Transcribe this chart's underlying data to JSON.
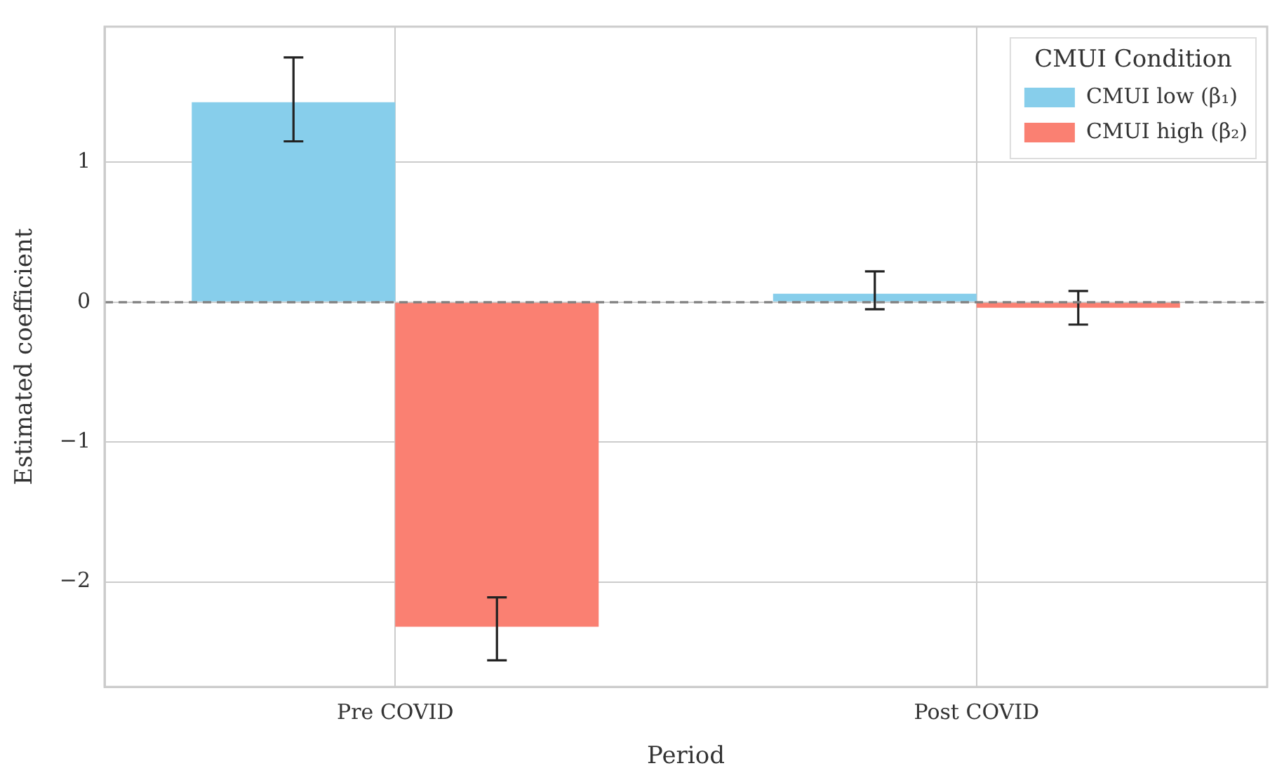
{
  "chart_data": {
    "type": "bar",
    "xlabel": "Period",
    "ylabel": "Estimated coefficient",
    "legend_title": "CMUI Condition",
    "categories": [
      "Pre COVID",
      "Post COVID"
    ],
    "series": [
      {
        "name": "CMUI low (β₁)",
        "color": "#87ceeb",
        "values": [
          1.43,
          0.06
        ],
        "errors": [
          [
            1.15,
            1.75
          ],
          [
            -0.05,
            0.22
          ]
        ]
      },
      {
        "name": "CMUI high (β₂)",
        "color": "#fa8072",
        "values": [
          -2.32,
          -0.04
        ],
        "errors": [
          [
            -2.56,
            -2.11
          ],
          [
            -0.16,
            0.08
          ]
        ]
      }
    ],
    "ylim": [
      -2.75,
      1.97
    ],
    "yticks": [
      {
        "value": -2,
        "label": "−2"
      },
      {
        "value": -1,
        "label": "−1"
      },
      0,
      1
    ],
    "ref_lines": [
      {
        "axis": "y",
        "value": 0,
        "color": "#808080",
        "line_style": "dashed"
      }
    ],
    "grid": true,
    "legend": "top right"
  }
}
